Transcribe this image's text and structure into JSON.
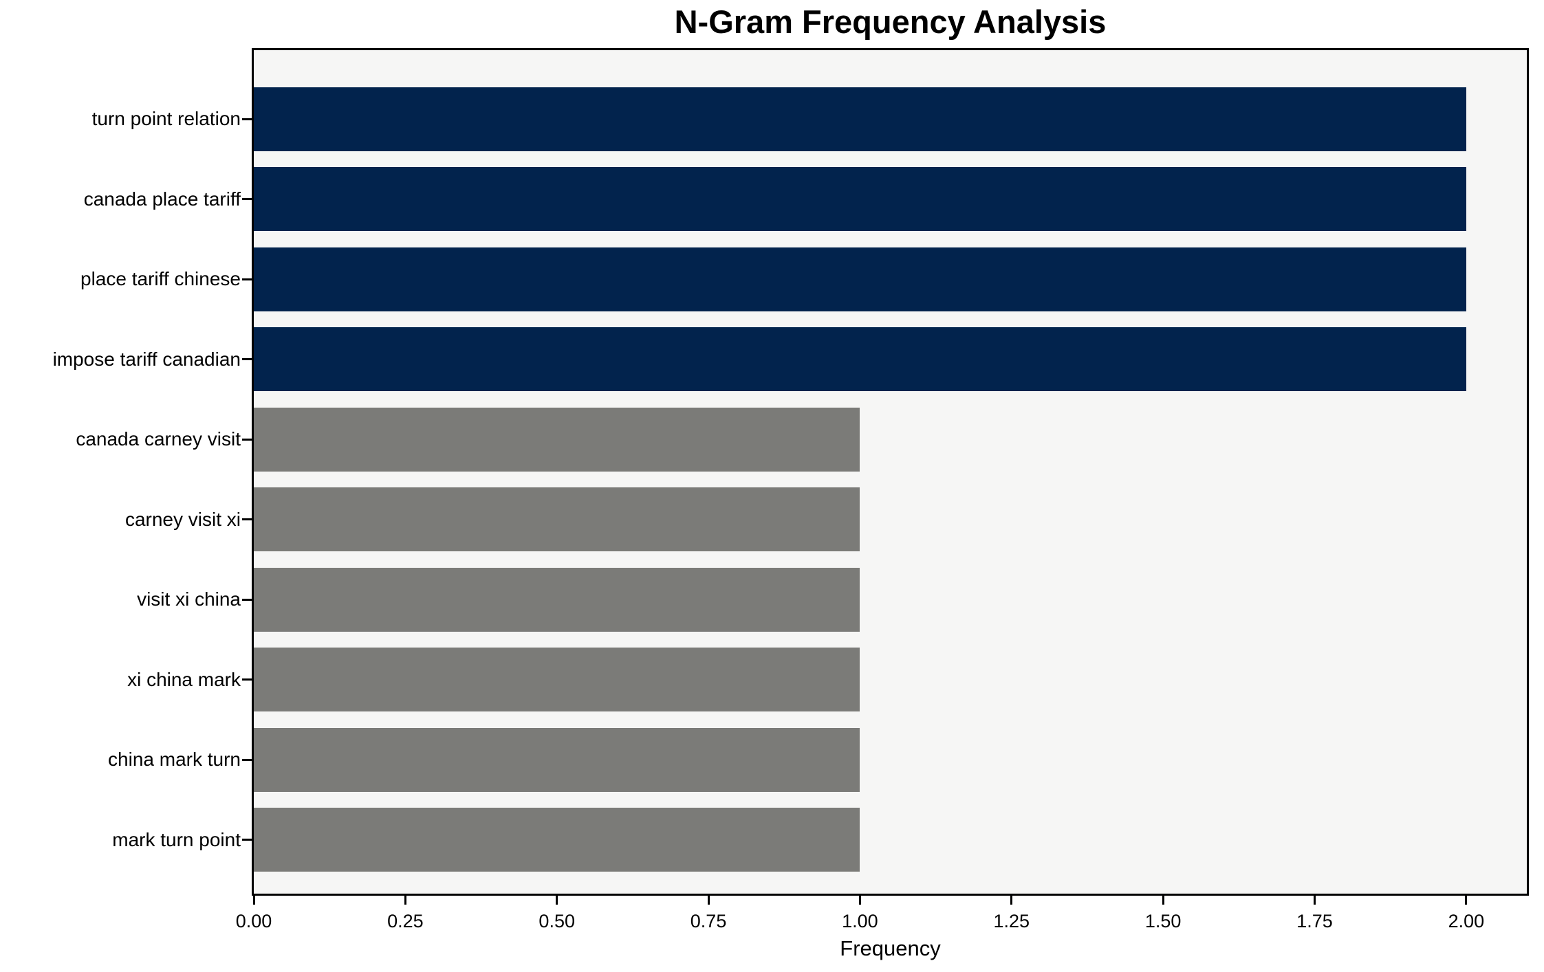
{
  "chart_data": {
    "type": "bar",
    "orientation": "horizontal",
    "title": "N-Gram Frequency Analysis",
    "xlabel": "Frequency",
    "ylabel": "",
    "categories": [
      "turn point relation",
      "canada place tariff",
      "place tariff chinese",
      "impose tariff canadian",
      "canada carney visit",
      "carney visit xi",
      "visit xi china",
      "xi china mark",
      "china mark turn",
      "mark turn point"
    ],
    "values": [
      2,
      2,
      2,
      2,
      1,
      1,
      1,
      1,
      1,
      1
    ],
    "bar_colors": [
      "#02234d",
      "#02234d",
      "#02234d",
      "#02234d",
      "#7b7b78",
      "#7b7b78",
      "#7b7b78",
      "#7b7b78",
      "#7b7b78",
      "#7b7b78"
    ],
    "xlim": [
      0,
      2.1
    ],
    "x_tick_values": [
      0,
      0.25,
      0.5,
      0.75,
      1.0,
      1.25,
      1.5,
      1.75,
      2.0
    ],
    "x_tick_labels": [
      "0.00",
      "0.25",
      "0.50",
      "0.75",
      "1.00",
      "1.25",
      "1.50",
      "1.75",
      "2.00"
    ],
    "grid": false,
    "legend": "none",
    "colors": {
      "bar_high": "#02234d",
      "bar_low": "#7b7b78",
      "plot_background": "#f6f6f5",
      "figure_background": "#ffffff",
      "spine": "#000000",
      "text": "#000000"
    }
  }
}
